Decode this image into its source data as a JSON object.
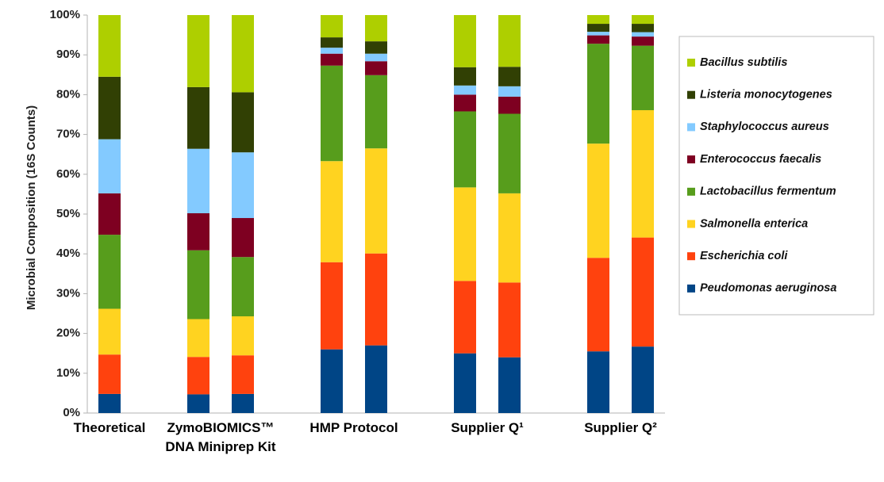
{
  "chart_data": {
    "type": "stacked-bar",
    "y_label": "Microbial Composition (16S Counts)",
    "categories": [
      "Theoretical",
      null,
      "ZymoBIOMICS™\nDNA Miniprep Kit",
      null,
      null,
      "HMP Protocol",
      null,
      null,
      "Supplier Q¹",
      null,
      null,
      "Supplier Q²",
      null
    ],
    "ylim": [
      0,
      100
    ],
    "yticks": [
      {
        "value": 0,
        "label": "0%"
      },
      {
        "value": 10,
        "label": "10%"
      },
      {
        "value": 20,
        "label": "20%"
      },
      {
        "value": 30,
        "label": "30%"
      },
      {
        "value": 40,
        "label": "40%"
      },
      {
        "value": 50,
        "label": "50%"
      },
      {
        "value": 60,
        "label": "60%"
      },
      {
        "value": 70,
        "label": "70%"
      },
      {
        "value": 80,
        "label": "80%"
      },
      {
        "value": 90,
        "label": "90%"
      },
      {
        "value": 100,
        "label": "100%"
      }
    ],
    "grid": false,
    "legend": "right",
    "series": [
      {
        "name": "Peudomonas aeruginosa",
        "color": "#004586",
        "values": [
          4.8,
          null,
          4.7,
          4.8,
          null,
          16.0,
          17.0,
          null,
          15.0,
          14.0,
          null,
          15.5,
          16.7
        ]
      },
      {
        "name": "Escherichia coli",
        "color": "#ff420e",
        "values": [
          9.9,
          null,
          9.4,
          9.7,
          null,
          21.9,
          23.1,
          null,
          18.2,
          18.8,
          null,
          23.5,
          27.4
        ]
      },
      {
        "name": "Salmonella enterica",
        "color": "#ffd320",
        "values": [
          11.5,
          null,
          9.5,
          9.8,
          null,
          25.4,
          26.4,
          null,
          23.5,
          22.4,
          null,
          28.7,
          32.0
        ]
      },
      {
        "name": "Lactobacillus fermentum",
        "color": "#579d1c",
        "values": [
          18.6,
          null,
          17.3,
          14.9,
          null,
          24.0,
          18.4,
          null,
          19.1,
          20.0,
          null,
          25.1,
          16.2
        ]
      },
      {
        "name": "Enterococcus faecalis",
        "color": "#7e0021",
        "values": [
          10.4,
          null,
          9.3,
          9.8,
          null,
          3.0,
          3.5,
          null,
          4.2,
          4.3,
          null,
          2.1,
          2.3
        ]
      },
      {
        "name": "Staphylococcus aureus",
        "color": "#83caff",
        "values": [
          13.6,
          null,
          16.2,
          16.5,
          null,
          1.5,
          1.9,
          null,
          2.3,
          2.6,
          null,
          0.9,
          1.1
        ]
      },
      {
        "name": "Listeria monocytogenes",
        "color": "#314004",
        "values": [
          15.7,
          null,
          15.5,
          15.1,
          null,
          2.6,
          3.1,
          null,
          4.6,
          4.9,
          null,
          2.0,
          2.1
        ]
      },
      {
        "name": "Bacillus subtilis",
        "color": "#aecf00",
        "values": [
          15.5,
          null,
          18.1,
          19.4,
          null,
          5.6,
          6.6,
          null,
          13.1,
          13.0,
          null,
          2.2,
          2.2
        ]
      }
    ]
  }
}
